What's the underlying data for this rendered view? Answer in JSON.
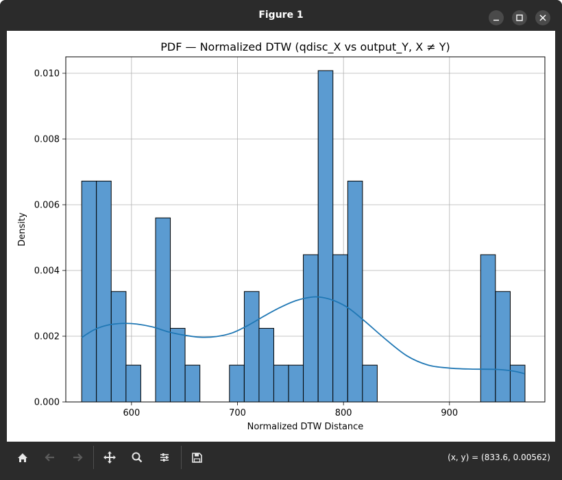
{
  "window": {
    "title": "Figure 1",
    "controls": {
      "minimize": "minimize-icon",
      "maximize": "maximize-icon",
      "close": "close-icon"
    }
  },
  "toolbar": {
    "buttons": [
      {
        "name": "home",
        "icon": "home-icon",
        "enabled": true
      },
      {
        "name": "back",
        "icon": "arrow-left-icon",
        "enabled": false
      },
      {
        "name": "forward",
        "icon": "arrow-right-icon",
        "enabled": false
      },
      {
        "name": "pan",
        "icon": "move-icon",
        "enabled": true
      },
      {
        "name": "zoom",
        "icon": "magnifier-icon",
        "enabled": true
      },
      {
        "name": "configure",
        "icon": "sliders-icon",
        "enabled": true
      },
      {
        "name": "save",
        "icon": "floppy-icon",
        "enabled": true
      }
    ],
    "coords": "(x, y) = (833.6, 0.00562)"
  },
  "chart_data": {
    "type": "bar",
    "title": "PDF — Normalized DTW (qdisc_X vs output_Y, X ≠ Y)",
    "xlabel": "Normalized DTW Distance",
    "ylabel": "Density",
    "xlim": [
      538,
      990
    ],
    "ylim": [
      0,
      0.0105
    ],
    "xticks": [
      600,
      700,
      800,
      900
    ],
    "xtick_labels": [
      "600",
      "700",
      "800",
      "900"
    ],
    "yticks": [
      0,
      0.002,
      0.004,
      0.006,
      0.008,
      0.01
    ],
    "ytick_labels": [
      "0.000",
      "0.002",
      "0.004",
      "0.006",
      "0.008",
      "0.010"
    ],
    "grid": true,
    "bar_color": "#5b9bd1",
    "bar_edge_color": "#000000",
    "line_color": "#1f77b4",
    "bin_width": 13.94,
    "bins": [
      {
        "x0": 553.0,
        "value": 0.00672
      },
      {
        "x0": 566.9,
        "value": 0.00672
      },
      {
        "x0": 580.9,
        "value": 0.00336
      },
      {
        "x0": 594.8,
        "value": 0.00112
      },
      {
        "x0": 608.8,
        "value": 0
      },
      {
        "x0": 622.7,
        "value": 0.0056
      },
      {
        "x0": 636.6,
        "value": 0.00224
      },
      {
        "x0": 650.6,
        "value": 0.00112
      },
      {
        "x0": 664.5,
        "value": 0
      },
      {
        "x0": 678.5,
        "value": 0
      },
      {
        "x0": 692.4,
        "value": 0.00112
      },
      {
        "x0": 706.4,
        "value": 0.00336
      },
      {
        "x0": 720.3,
        "value": 0.00224
      },
      {
        "x0": 734.2,
        "value": 0.00112
      },
      {
        "x0": 748.2,
        "value": 0.00112
      },
      {
        "x0": 762.1,
        "value": 0.00448
      },
      {
        "x0": 776.1,
        "value": 0.01008
      },
      {
        "x0": 790.0,
        "value": 0.00448
      },
      {
        "x0": 804.0,
        "value": 0.00672
      },
      {
        "x0": 817.9,
        "value": 0.00112
      },
      {
        "x0": 831.8,
        "value": 0
      },
      {
        "x0": 845.8,
        "value": 0
      },
      {
        "x0": 859.7,
        "value": 0
      },
      {
        "x0": 873.7,
        "value": 0
      },
      {
        "x0": 887.6,
        "value": 0
      },
      {
        "x0": 901.6,
        "value": 0
      },
      {
        "x0": 915.5,
        "value": 0
      },
      {
        "x0": 929.4,
        "value": 0.00448
      },
      {
        "x0": 943.4,
        "value": 0.00336
      },
      {
        "x0": 957.3,
        "value": 0.00112
      }
    ],
    "kde": {
      "x": [
        553,
        565,
        578,
        592,
        605,
        620,
        635,
        650,
        665,
        680,
        695,
        710,
        725,
        740,
        755,
        770,
        780,
        792,
        805,
        820,
        840,
        860,
        880,
        900,
        920,
        945,
        960,
        971
      ],
      "y": [
        0.00196,
        0.0022,
        0.00234,
        0.00239,
        0.00237,
        0.00228,
        0.00213,
        0.00203,
        0.00197,
        0.00199,
        0.0021,
        0.00233,
        0.00261,
        0.00287,
        0.00308,
        0.00319,
        0.00318,
        0.00307,
        0.00285,
        0.00246,
        0.0019,
        0.0014,
        0.00112,
        0.00103,
        0.001,
        0.00099,
        0.00094,
        0.00086
      ]
    }
  }
}
